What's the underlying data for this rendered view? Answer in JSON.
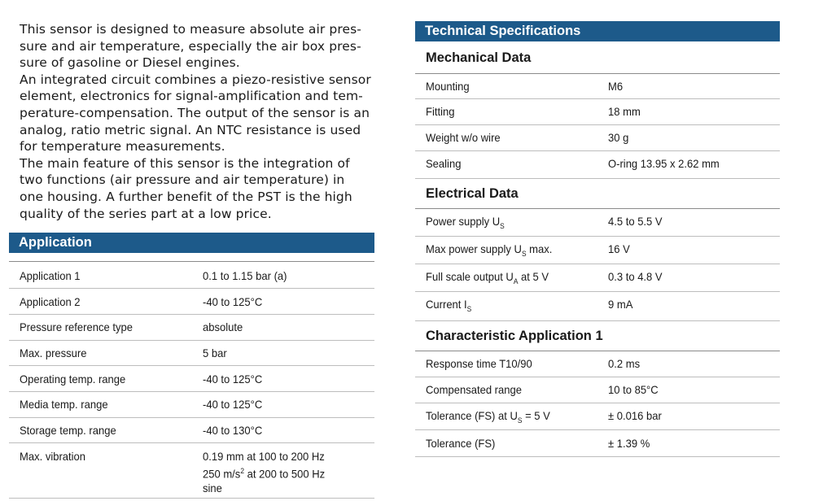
{
  "intro": {
    "p1_lines": [
      "This sensor is designed to measure absolute air pres-",
      "sure and air temperature, especially the air box pres-",
      "sure of gasoline or Diesel engines."
    ],
    "p2_lines": [
      "An integrated circuit combines a piezo-resistive sensor",
      "element, electronics for signal-amplification and tem-",
      "perature-compensation. The output of the sensor is an",
      "analog, ratio metric signal. An NTC resistance is used",
      "for temperature measurements."
    ],
    "p3_lines": [
      "The main feature of this sensor is the integration of",
      "two functions (air pressure and air temperature) in",
      "one housing. A further benefit of the PST is the high",
      "quality of the series part at a low price."
    ]
  },
  "application": {
    "title": "Application",
    "rows": [
      {
        "label": "Application 1",
        "value": "0.1 to 1.15 bar (a)"
      },
      {
        "label": "Application 2",
        "value": "-40 to 125°C"
      },
      {
        "label": "Pressure reference type",
        "value": "absolute"
      },
      {
        "label": "Max. pressure",
        "value": "5 bar"
      },
      {
        "label": "Operating temp. range",
        "value": "-40 to 125°C"
      },
      {
        "label": "Media temp. range",
        "value": "-40 to 125°C"
      },
      {
        "label": "Storage temp. range",
        "value": "-40 to 130°C"
      },
      {
        "label": "Max. vibration",
        "value_lines": [
          "0.19 mm at 100 to 200 Hz",
          "250 m/s",
          "2",
          " at 200 to 500 Hz",
          "sine"
        ]
      }
    ]
  },
  "tech": {
    "title": "Technical Specifications",
    "mechanical": {
      "title": "Mechanical Data",
      "rows": [
        {
          "label": "Mounting",
          "value": "M6"
        },
        {
          "label": "Fitting",
          "value": "18 mm"
        },
        {
          "label": "Weight w/o wire",
          "value": "30 g"
        },
        {
          "label": "Sealing",
          "value": "O-ring 13.95 x 2.62 mm"
        }
      ]
    },
    "electrical": {
      "title": "Electrical Data",
      "rows": [
        {
          "label": "Power supply U",
          "sub": "S",
          "label_after": "",
          "value": "4.5 to 5.5 V"
        },
        {
          "label": "Max power supply U",
          "sub": "S",
          "label_after": " max.",
          "value": "16 V"
        },
        {
          "label": "Full scale output U",
          "sub": "A",
          "label_after": " at 5 V",
          "value": "0.3 to 4.8 V"
        },
        {
          "label": "Current I",
          "sub": "S",
          "label_after": "",
          "value": "9 mA"
        }
      ]
    },
    "characteristic": {
      "title": "Characteristic Application 1",
      "rows": [
        {
          "label": "Response time T10/90",
          "value": "0.2 ms"
        },
        {
          "label": "Compensated range",
          "value": "10 to 85°C"
        },
        {
          "label": "Tolerance (FS) at U",
          "sub": "S",
          "label_after": " = 5 V",
          "value": "± 0.016 bar"
        },
        {
          "label": "Tolerance (FS)",
          "value": "± 1.39 %"
        }
      ]
    }
  },
  "colors": {
    "band": "#1d5a8a",
    "rule": "#bdbdbd"
  }
}
